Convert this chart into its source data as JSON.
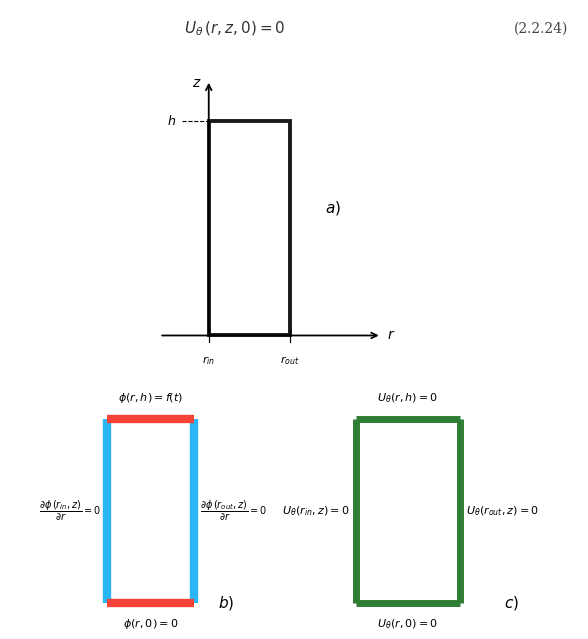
{
  "title_eq": "$U_{\\theta}\\,(r,z,0) = 0$",
  "eq_number": "(2.2.24)",
  "bg_color": "#ffffff",
  "rect_color": "#1a1a1a",
  "blue_color": "#29b6f6",
  "red_color": "#f44336",
  "green_color": "#2e7d32",
  "label_a": "$a)$",
  "label_b": "$b)$",
  "label_c": "$c)$",
  "top_label_b": "$\\phi(r,h) = f(t)$",
  "bottom_label_b": "$\\phi(r,0) = 0$",
  "left_label_b": "$\\dfrac{\\partial\\phi\\,(r_{in},z)}{\\partial r} = 0$",
  "right_label_b": "$\\dfrac{\\partial\\phi\\,(r_{out},z)}{\\partial r} = 0$",
  "top_label_c": "$U_{\\theta}(r,h) = 0$",
  "bottom_label_c": "$U_{\\theta}(r,0) = 0$",
  "left_label_c": "$U_{\\theta}(r_{in},z) = 0$",
  "right_label_c": "$U_{\\theta}(r_{out},z) = 0$",
  "z_label": "$z$",
  "r_label": "$r$",
  "h_label": "$h$",
  "rin_label": "$r_{in}$",
  "rout_label": "$r_{out}$"
}
